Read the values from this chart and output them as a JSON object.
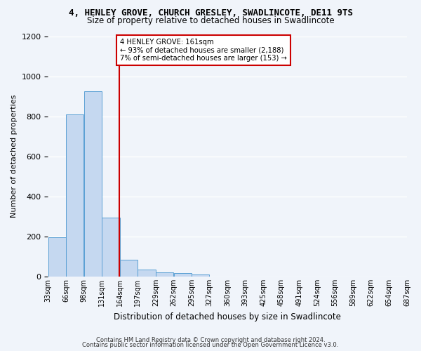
{
  "title_line1": "4, HENLEY GROVE, CHURCH GRESLEY, SWADLINCOTE, DE11 9TS",
  "title_line2": "Size of property relative to detached houses in Swadlincote",
  "xlabel": "Distribution of detached houses by size in Swadlincote",
  "ylabel": "Number of detached properties",
  "bin_edges": [
    33,
    66,
    99,
    132,
    165,
    198,
    231,
    264,
    297,
    330,
    363,
    396,
    429,
    462,
    495,
    528,
    561,
    594,
    627,
    660,
    693
  ],
  "bin_labels": [
    "33sqm",
    "66sqm",
    "98sqm",
    "131sqm",
    "164sqm",
    "197sqm",
    "229sqm",
    "262sqm",
    "295sqm",
    "327sqm",
    "360sqm",
    "393sqm",
    "425sqm",
    "458sqm",
    "491sqm",
    "524sqm",
    "556sqm",
    "589sqm",
    "622sqm",
    "654sqm",
    "687sqm"
  ],
  "bar_heights": [
    195,
    810,
    925,
    295,
    85,
    35,
    20,
    18,
    12,
    0,
    0,
    0,
    0,
    0,
    0,
    0,
    0,
    0,
    0,
    0
  ],
  "bar_color": "#c5d8f0",
  "bar_edge_color": "#5a9fd4",
  "ylim": [
    0,
    1200
  ],
  "yticks": [
    0,
    200,
    400,
    600,
    800,
    1000,
    1200
  ],
  "property_line_x": 164,
  "annotation_text_line1": "4 HENLEY GROVE: 161sqm",
  "annotation_text_line2": "← 93% of detached houses are smaller (2,188)",
  "annotation_text_line3": "7% of semi-detached houses are larger (153) →",
  "annotation_box_color": "#ffffff",
  "annotation_box_edge": "#cc0000",
  "vline_color": "#cc0000",
  "footer_line1": "Contains HM Land Registry data © Crown copyright and database right 2024.",
  "footer_line2": "Contains public sector information licensed under the Open Government Licence v3.0.",
  "background_color": "#f0f4fa",
  "grid_color": "#ffffff"
}
